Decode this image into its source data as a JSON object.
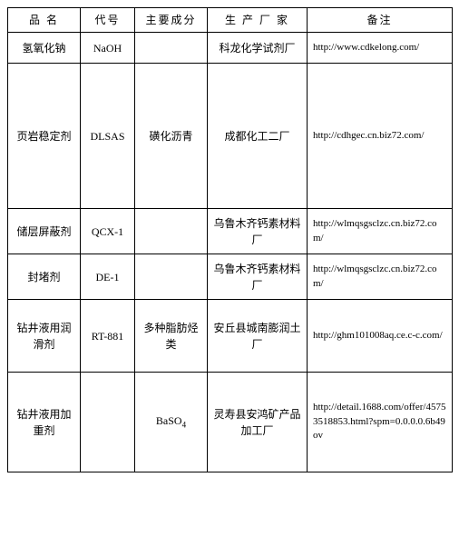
{
  "headers": {
    "name": "品 名",
    "code": "代号",
    "component": "主要成分",
    "manufacturer": "生 产 厂 家",
    "note": "备注"
  },
  "rows": [
    {
      "name": "氢氧化钠",
      "code": "NaOH",
      "component": "",
      "manufacturer": "科龙化学试剂厂",
      "note": "http://www.cdkelong.com/"
    },
    {
      "name": "页岩稳定剂",
      "code": "DLSAS",
      "component": "磺化沥青",
      "manufacturer": "成都化工二厂",
      "note": "http://cdhgec.cn.biz72.com/"
    },
    {
      "name": "储层屏蔽剂",
      "code": "QCX-1",
      "component": "",
      "manufacturer": "乌鲁木齐钙素材料厂",
      "note": "http://wlmqsgsclzc.cn.biz72.com/"
    },
    {
      "name": "封堵剂",
      "code": "DE-1",
      "component": "",
      "manufacturer": "乌鲁木齐钙素材料厂",
      "note": "http://wlmqsgsclzc.cn.biz72.com/"
    },
    {
      "name": "钻井液用润滑剂",
      "code": "RT-881",
      "component": "多种脂肪烃类",
      "manufacturer": "安丘县城南膨润土厂",
      "note": "http://ghm101008aq.ce.c-c.com/"
    },
    {
      "name": "钻井液用加重剂",
      "code": "",
      "component": "BaSO4",
      "manufacturer": "灵寿县安鸿矿产品加工厂",
      "note": "http://detail.1688.com/offer/45753518853.html?spm=0.0.0.0.6b49ov"
    }
  ]
}
